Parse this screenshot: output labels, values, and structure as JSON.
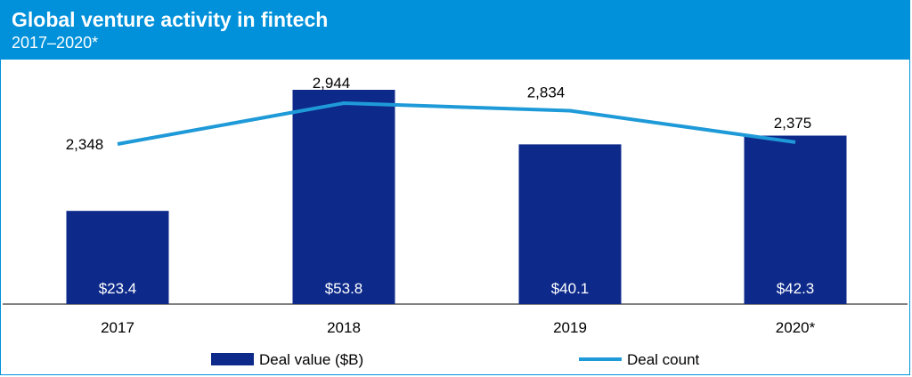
{
  "header": {
    "title": "Global venture activity in fintech",
    "subtitle": "2017–2020*"
  },
  "colors": {
    "header_bg": "#0091da",
    "bar": "#0d2a8a",
    "line": "#1f9ad8"
  },
  "chart_data": {
    "type": "bar",
    "categories": [
      "2017",
      "2018",
      "2019",
      "2020*"
    ],
    "series": [
      {
        "name": "Deal value ($B)",
        "type": "bar",
        "values": [
          23.4,
          53.8,
          40.1,
          42.3
        ],
        "labels": [
          "$23.4",
          "$53.8",
          "$40.1",
          "$42.3"
        ]
      },
      {
        "name": "Deal count",
        "type": "line",
        "values": [
          2348,
          2944,
          2834,
          2375
        ],
        "labels": [
          "2,348",
          "2,944",
          "2,834",
          "2,375"
        ]
      }
    ],
    "legend_position": "bottom",
    "grid": false
  }
}
